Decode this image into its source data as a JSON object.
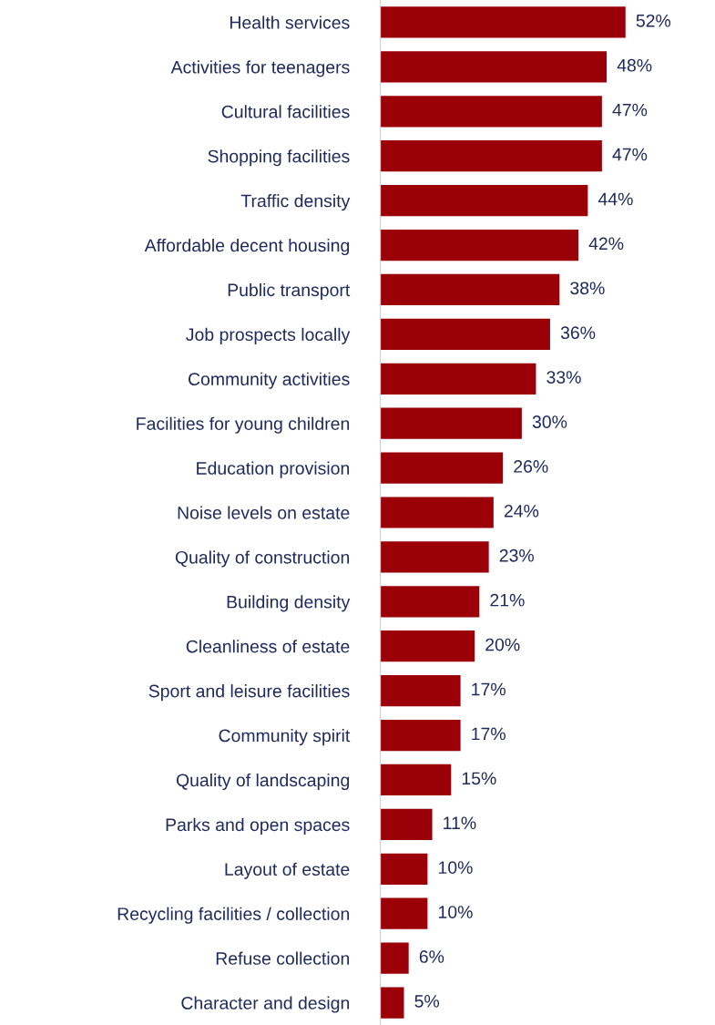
{
  "chart_data": {
    "type": "bar",
    "orientation": "horizontal",
    "data_labels": true,
    "grid": false,
    "legend": false,
    "color": "#9b0008",
    "categories": [
      "Health services",
      "Activities for teenagers",
      "Cultural facilities",
      "Shopping facilities",
      "Traffic density",
      "Affordable decent housing",
      "Public transport",
      "Job prospects locally",
      "Community activities",
      "Facilities for young children",
      "Education provision",
      "Noise levels on estate",
      "Quality of construction",
      "Building density",
      "Cleanliness of estate",
      "Sport and leisure facilities",
      "Community spirit",
      "Quality of landscaping",
      "Parks and open spaces",
      "Layout of estate",
      "Recycling facilities / collection",
      "Refuse collection",
      "Character and design"
    ],
    "values": [
      52,
      48,
      47,
      47,
      44,
      42,
      38,
      36,
      33,
      30,
      26,
      24,
      23,
      21,
      20,
      17,
      17,
      15,
      11,
      10,
      10,
      6,
      5
    ],
    "value_labels": [
      "52%",
      "48%",
      "47%",
      "47%",
      "44%",
      "42%",
      "38%",
      "36%",
      "33%",
      "30%",
      "26%",
      "24%",
      "23%",
      "21%",
      "20%",
      "17%",
      "17%",
      "15%",
      "11%",
      "10%",
      "10%",
      "6%",
      "5%"
    ]
  }
}
